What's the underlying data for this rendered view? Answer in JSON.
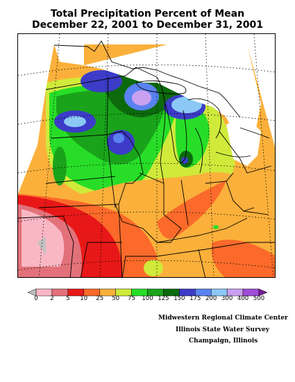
{
  "title": {
    "line1": "Total Precipitation Percent of Mean",
    "line2": "December 22, 2001 to December 31, 2001"
  },
  "legend": {
    "labels": [
      "0",
      "2",
      "5",
      "10",
      "25",
      "50",
      "75",
      "100",
      "125",
      "150",
      "175",
      "200",
      "300",
      "400",
      "500"
    ],
    "colors": [
      "#c0c0c0",
      "#f9b7c3",
      "#e2717a",
      "#e81818",
      "#fb6a2a",
      "#fbb03b",
      "#cfea3a",
      "#28dd28",
      "#1aa31a",
      "#0c6a0c",
      "#3c3cc8",
      "#5a82f0",
      "#8cc8f5",
      "#c9a0f0",
      "#a04cd8",
      "#781c96"
    ]
  },
  "credits": {
    "line1": "Midwestern Regional Climate Center",
    "line2": "Illinois State Water Survey",
    "line3": "Champaign, Illinois"
  }
}
